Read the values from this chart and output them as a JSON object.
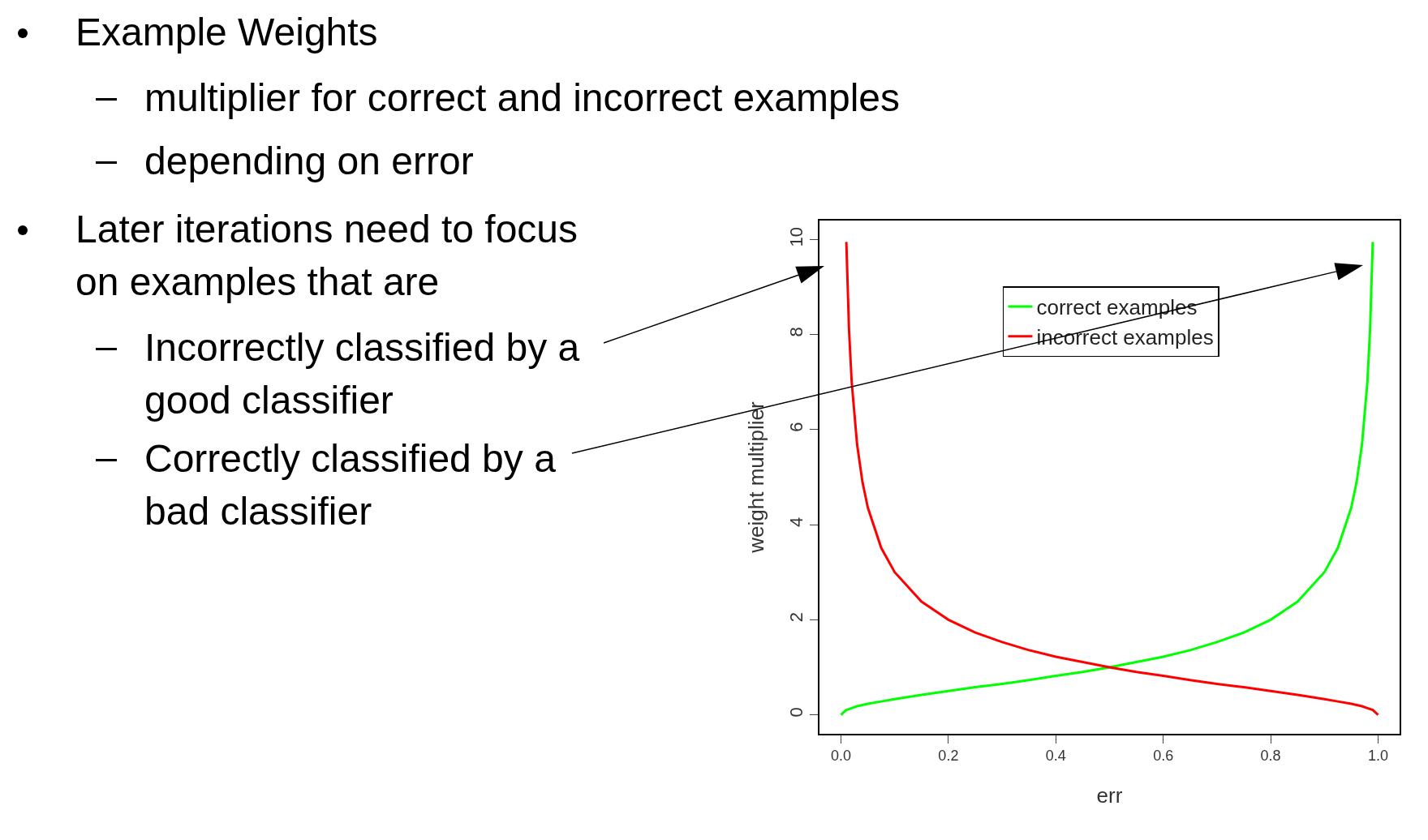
{
  "chart_data": {
    "type": "line",
    "xlabel": "err",
    "ylabel": "weight multiplier",
    "annotations": [
      "Example Weights",
      "multiplier for correct and incorrect examples",
      "depending on error",
      "Later iterations need to focus on examples that are",
      "Incorrectly classified by a good classifier",
      "Correctly classified by a bad classifier"
    ],
    "series": [
      {
        "name": "correct examples",
        "color": "#00ff00",
        "x": [
          0,
          0.01,
          0.02,
          0.03,
          0.05,
          0.075,
          0.1,
          0.15,
          0.2,
          0.25,
          0.3,
          0.35,
          0.4,
          0.45,
          0.5,
          0.55,
          0.6,
          0.65,
          0.7,
          0.75,
          0.8,
          0.85,
          0.9,
          0.925,
          0.95,
          0.96,
          0.97,
          0.98,
          0.985,
          0.99
        ],
        "values": [
          0,
          0.1,
          0.14,
          0.18,
          0.23,
          0.28,
          0.33,
          0.42,
          0.5,
          0.58,
          0.65,
          0.73,
          0.82,
          0.9,
          1,
          1.11,
          1.22,
          1.36,
          1.53,
          1.73,
          2,
          2.38,
          3,
          3.51,
          4.36,
          4.9,
          5.69,
          7,
          8.1,
          9.95
        ]
      },
      {
        "name": "incorrect examples",
        "color": "#ff0000",
        "x": [
          0.01,
          0.015,
          0.02,
          0.03,
          0.04,
          0.05,
          0.075,
          0.1,
          0.15,
          0.2,
          0.25,
          0.3,
          0.35,
          0.4,
          0.45,
          0.5,
          0.55,
          0.6,
          0.65,
          0.7,
          0.75,
          0.8,
          0.85,
          0.9,
          0.925,
          0.95,
          0.97,
          0.98,
          0.99,
          1
        ],
        "values": [
          9.95,
          8.1,
          7,
          5.69,
          4.9,
          4.36,
          3.51,
          3,
          2.38,
          2,
          1.73,
          1.53,
          1.36,
          1.22,
          1.11,
          1,
          0.9,
          0.82,
          0.73,
          0.65,
          0.58,
          0.5,
          0.42,
          0.33,
          0.28,
          0.23,
          0.18,
          0.14,
          0.1,
          0
        ]
      }
    ],
    "xlim": [
      -0.04,
      1.04
    ],
    "ylim": [
      -0.4,
      10.4
    ],
    "xticks": [
      {
        "value": 0,
        "label": "0.0"
      },
      0.2,
      0.4,
      0.6,
      0.8,
      {
        "value": 1,
        "label": "1.0"
      }
    ],
    "yticks": [
      0,
      2,
      4,
      6,
      8,
      10
    ],
    "grid": false,
    "legend": "top",
    "marker": "none",
    "line_style": "solid"
  }
}
